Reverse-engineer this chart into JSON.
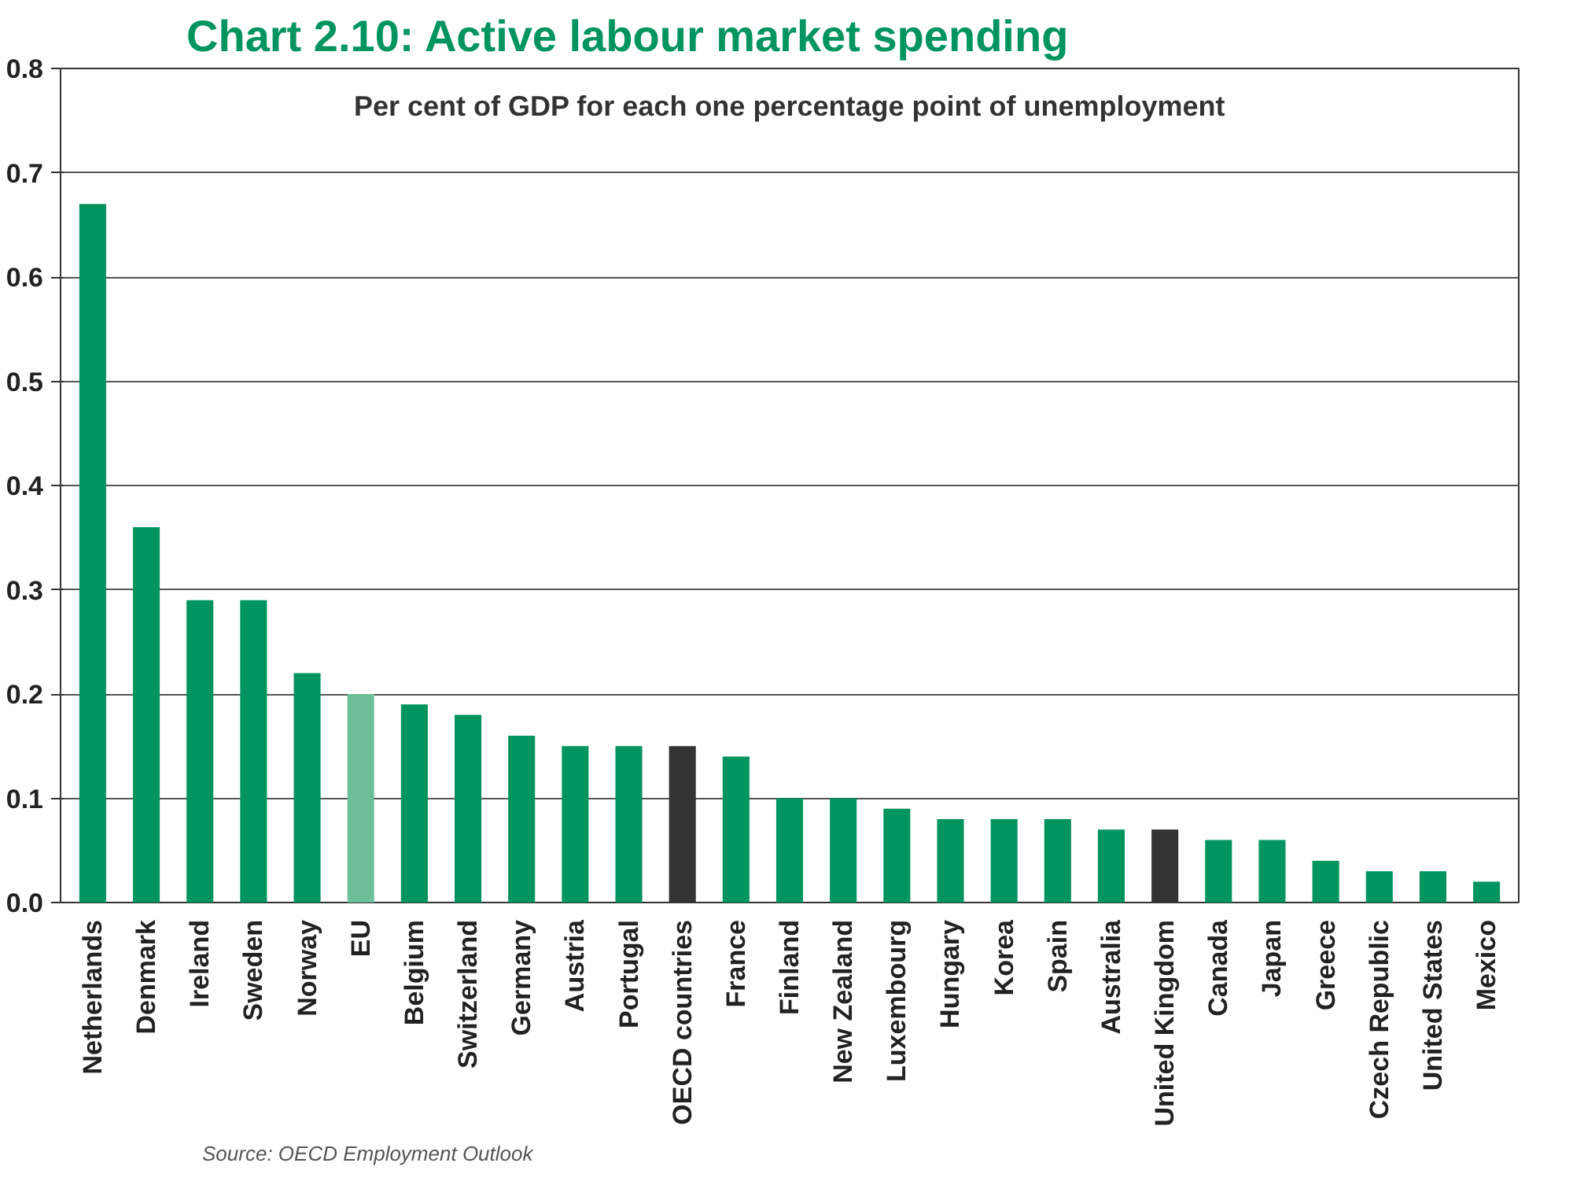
{
  "chart_data": {
    "type": "bar",
    "title": "Chart 2.10: Active labour market spending",
    "subtitle": "Per cent of GDP for each one percentage point of unemployment",
    "categories": [
      "Netherlands",
      "Denmark",
      "Ireland",
      "Sweden",
      "Norway",
      "EU",
      "Belgium",
      "Switzerland",
      "Germany",
      "Austria",
      "Portugal",
      "OECD countries",
      "France",
      "Finland",
      "New Zealand",
      "Luxembourg",
      "Hungary",
      "Korea",
      "Spain",
      "Australia",
      "United Kingdom",
      "Canada",
      "Japan",
      "Greece",
      "Czech Republic",
      "United States",
      "Mexico"
    ],
    "values": [
      0.67,
      0.36,
      0.29,
      0.29,
      0.22,
      0.2,
      0.19,
      0.18,
      0.16,
      0.15,
      0.15,
      0.15,
      0.14,
      0.1,
      0.1,
      0.09,
      0.08,
      0.08,
      0.08,
      0.07,
      0.07,
      0.06,
      0.06,
      0.04,
      0.03,
      0.03,
      0.02
    ],
    "colors": [
      "#00945e",
      "#00945e",
      "#00945e",
      "#00945e",
      "#00945e",
      "#6dbf9a",
      "#00945e",
      "#00945e",
      "#00945e",
      "#00945e",
      "#00945e",
      "#333333",
      "#00945e",
      "#00945e",
      "#00945e",
      "#00945e",
      "#00945e",
      "#00945e",
      "#00945e",
      "#00945e",
      "#333333",
      "#00945e",
      "#00945e",
      "#00945e",
      "#00945e",
      "#00945e",
      "#00945e"
    ],
    "ylim": [
      0,
      0.8
    ],
    "yticks": [
      {
        "value": 0,
        "label": "0.0"
      },
      0.1,
      0.2,
      0.3,
      0.4,
      0.5,
      0.6,
      0.7,
      0.8
    ],
    "grid": "y",
    "annotations": [
      "Source: OECD Employment Outlook"
    ]
  }
}
